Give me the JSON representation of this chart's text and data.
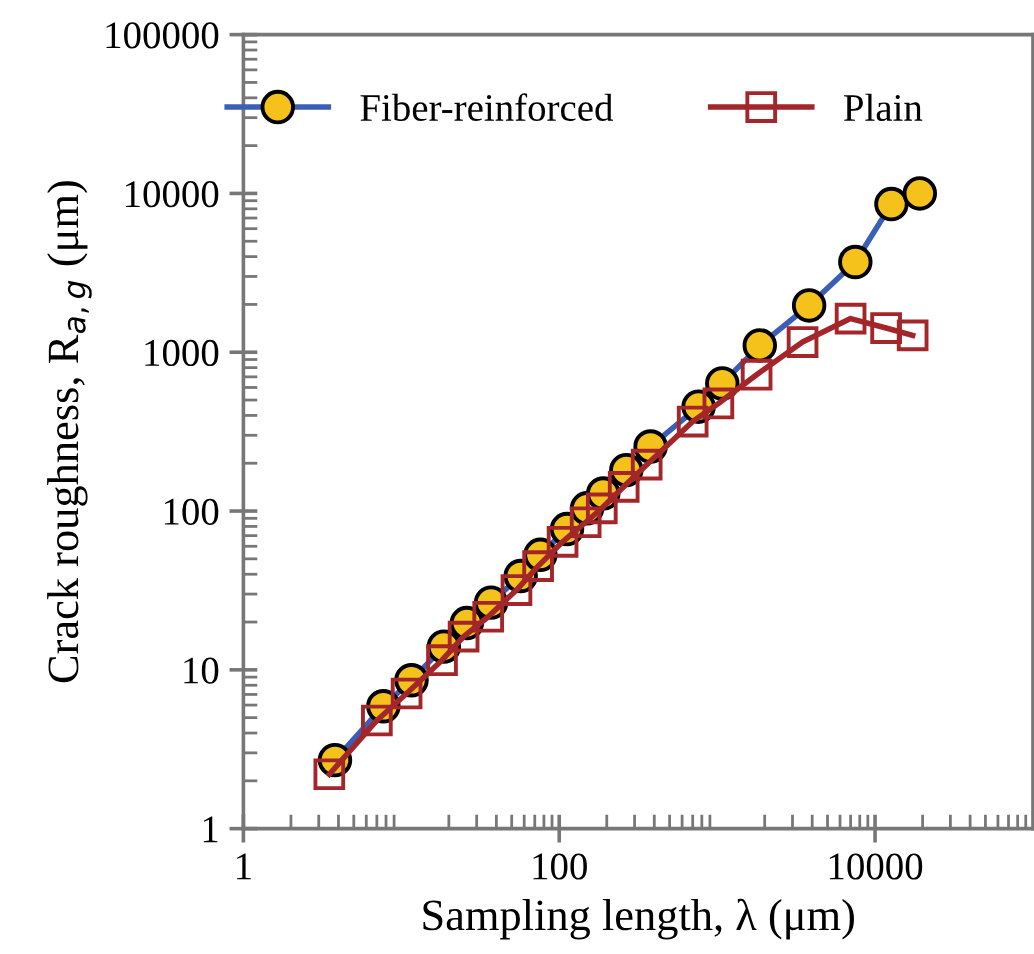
{
  "chart_data": {
    "type": "line",
    "xlabel": "Sampling length, λ (μm)",
    "ylabel": "Crack roughness, R$_{a,g}$ (μm)",
    "log": "xy",
    "xlim": [
      1,
      100000
    ],
    "ylim": [
      1,
      100000
    ],
    "xticks": [
      1,
      100,
      10000
    ],
    "yticks": [
      1,
      10,
      100,
      1000,
      10000,
      100000
    ],
    "grid": false,
    "legend": "top",
    "line_style": "solid",
    "series": [
      {
        "name": "Fiber-reinforced",
        "color": "#3b5fb8",
        "marker": "circle",
        "x": [
          3.8,
          7.7,
          11.6,
          18.6,
          26,
          37,
          57,
          76,
          112,
          150,
          190,
          266,
          379,
          763,
          1078,
          1862,
          3824,
          7500,
          12700,
          19200
        ],
        "values": [
          2.7,
          5.9,
          8.6,
          14,
          19.7,
          26.5,
          39,
          53,
          77,
          104,
          129,
          181,
          255,
          454,
          636,
          1104,
          1972,
          3700,
          8570,
          10000
        ]
      },
      {
        "name": "Plain",
        "color": "#a3262a",
        "marker": "square",
        "x": [
          3.5,
          7.0,
          10.8,
          18.1,
          24.8,
          35.5,
          53.6,
          73.5,
          105,
          147,
          186,
          256,
          358,
          700,
          1018,
          1778,
          3475,
          7000,
          11750,
          17300
        ],
        "values": [
          2.2,
          4.8,
          7.1,
          11.5,
          16.2,
          21.6,
          31.8,
          45,
          64,
          85,
          104,
          142,
          196,
          366,
          476,
          722,
          1159,
          1629,
          1420,
          1276
        ]
      }
    ]
  }
}
